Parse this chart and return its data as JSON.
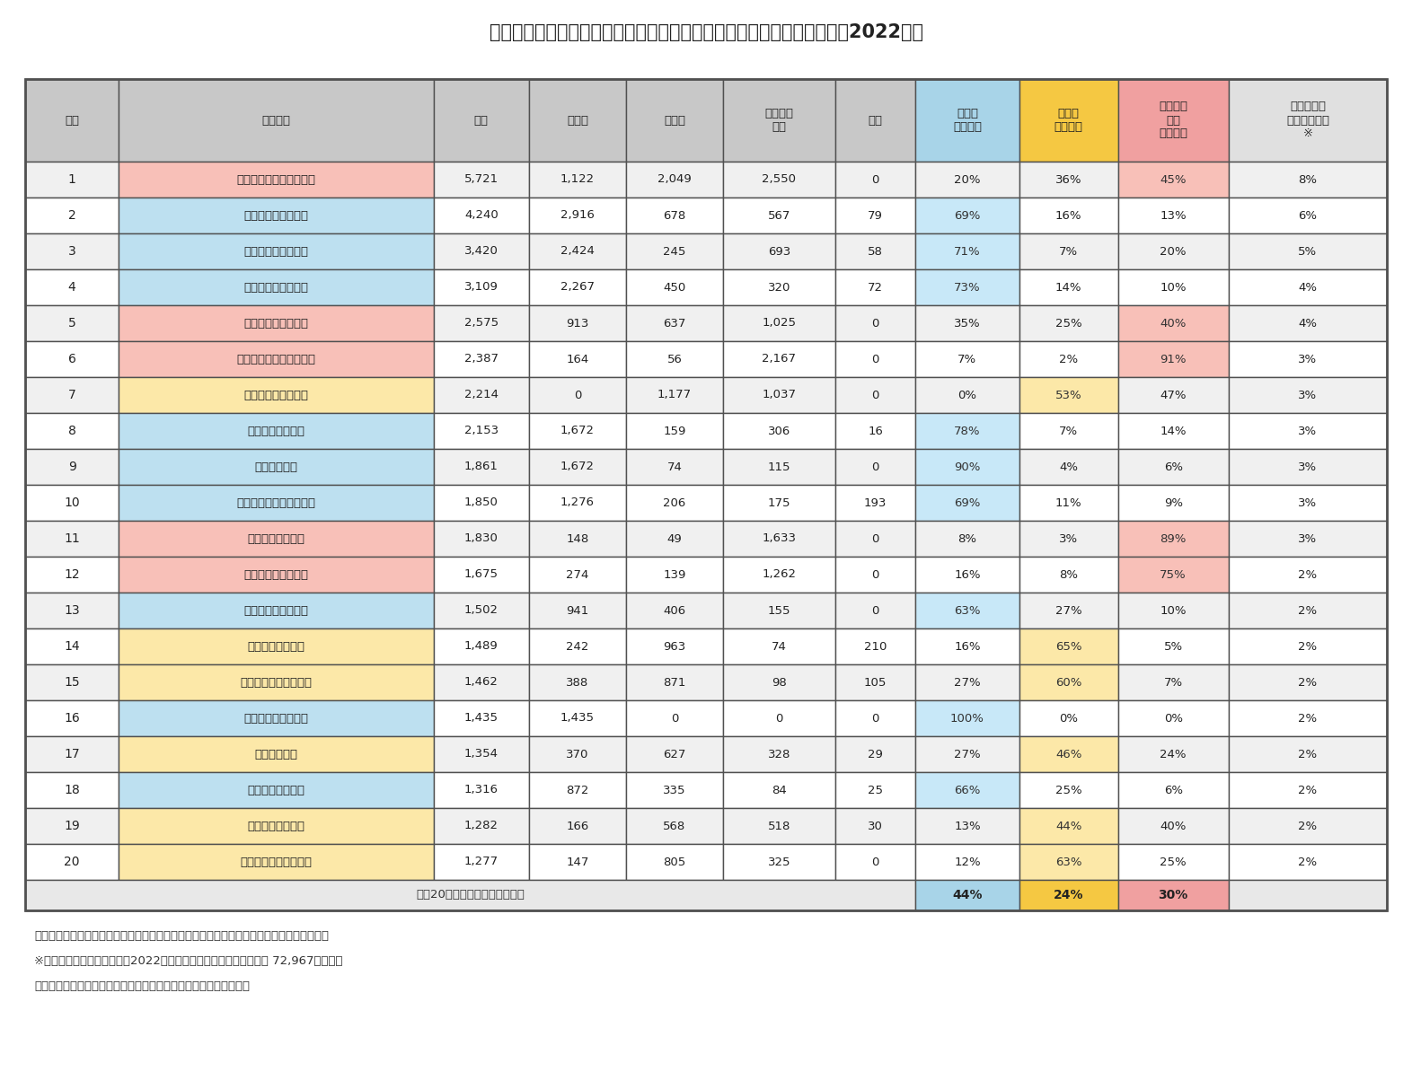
{
  "title": "図表８　新築マンションの供給戸数ランキングと各圏域での供給割合（2022年）",
  "rows": [
    [
      1,
      "オープンハウスグループ",
      "5,721",
      "1,122",
      "2,049",
      "2,550",
      "0",
      "20%",
      "36%",
      "45%",
      "8%"
    ],
    [
      2,
      "野村不動産グループ",
      "4,240",
      "2,916",
      "678",
      "567",
      "79",
      "69%",
      "16%",
      "13%",
      "6%"
    ],
    [
      3,
      "三井不動産グループ",
      "3,420",
      "2,424",
      "245",
      "693",
      "58",
      "71%",
      "7%",
      "20%",
      "5%"
    ],
    [
      4,
      "住友不動産グループ",
      "3,109",
      "2,267",
      "450",
      "320",
      "72",
      "73%",
      "14%",
      "10%",
      "4%"
    ],
    [
      5,
      "大和ハウスグループ",
      "2,575",
      "913",
      "637",
      "1,025",
      "0",
      "35%",
      "25%",
      "40%",
      "4%"
    ],
    [
      6,
      "タカラレーベングループ",
      "2,387",
      "164",
      "56",
      "2,167",
      "0",
      "7%",
      "2%",
      "91%",
      "3%"
    ],
    [
      7,
      "森トラストグループ",
      "2,214",
      "0",
      "1,177",
      "1,037",
      "0",
      "0%",
      "53%",
      "47%",
      "3%"
    ],
    [
      8,
      "三菱地所グループ",
      "2,153",
      "1,672",
      "159",
      "306",
      "16",
      "78%",
      "7%",
      "14%",
      "3%"
    ],
    [
      9,
      "飯田グループ",
      "1,861",
      "1,672",
      "74",
      "115",
      "0",
      "90%",
      "4%",
      "6%",
      "3%"
    ],
    [
      10,
      "日鉄興和不動産グループ",
      "1,850",
      "1,276",
      "206",
      "175",
      "193",
      "69%",
      "11%",
      "9%",
      "3%"
    ],
    [
      11,
      "あなぶきグループ",
      "1,830",
      "148",
      "49",
      "1,633",
      "0",
      "8%",
      "3%",
      "89%",
      "3%"
    ],
    [
      12,
      "オリックスグループ",
      "1,675",
      "274",
      "139",
      "1,262",
      "0",
      "16%",
      "8%",
      "75%",
      "2%"
    ],
    [
      13,
      "東急不動産グループ",
      "1,502",
      "941",
      "406",
      "155",
      "0",
      "63%",
      "27%",
      "10%",
      "2%"
    ],
    [
      14,
      "関西電力グループ",
      "1,489",
      "242",
      "963",
      "74",
      "210",
      "16%",
      "65%",
      "5%",
      "2%"
    ],
    [
      15,
      "阪急阪神東宝グループ",
      "1,462",
      "388",
      "871",
      "98",
      "105",
      "27%",
      "60%",
      "7%",
      "2%"
    ],
    [
      16,
      "新日本建設グループ",
      "1,435",
      "1,435",
      "0",
      "0",
      "0",
      "100%",
      "0%",
      "0%",
      "2%"
    ],
    [
      17,
      "近鉄グループ",
      "1,354",
      "370",
      "627",
      "328",
      "29",
      "27%",
      "46%",
      "24%",
      "2%"
    ],
    [
      18,
      "東京建物グループ",
      "1,316",
      "872",
      "335",
      "84",
      "25",
      "66%",
      "25%",
      "6%",
      "2%"
    ],
    [
      19,
      "中部電力グループ",
      "1,282",
      "166",
      "568",
      "518",
      "30",
      "13%",
      "44%",
      "40%",
      "2%"
    ],
    [
      20,
      "日商エステムグループ",
      "1,277",
      "147",
      "805",
      "325",
      "0",
      "12%",
      "63%",
      "25%",
      "2%"
    ]
  ],
  "footer_label": "上位20社の各圏域での供給割合",
  "footer_vals": [
    "44%",
    "24%",
    "30%"
  ],
  "footnotes": [
    "青：首都圏への供給が多い、黄：近畿圏への供給が多い、赤：その他の圏域への供給が多い",
    "※　ここでの全体の供給は、2022年の全国新築マンション供給戸数 72,967戸を指す",
    "（資料）不動産経済研究所の公表を基にニッセイ基礎研究所が作成"
  ],
  "col_headers": [
    "順位",
    "グループ",
    "全国",
    "首都圏",
    "近畿圏",
    "その他の\n圏域",
    "定借",
    "首都圏\n投資割合",
    "近畿圏\n投資割合",
    "その他の\n圏域\n投資割合",
    "全体の供給\nに占める割合\n※"
  ],
  "header_gray": "#c8c8c8",
  "header_blue": "#a8d4e8",
  "header_yellow": "#f5c842",
  "header_pink": "#f0a0a0",
  "header_lastcol": "#e0e0e0",
  "name_blue": "#bde0f0",
  "name_yellow": "#fce8a8",
  "name_pink": "#f8c0b8",
  "cell_blue": "#c8e8f8",
  "cell_yellow": "#fce8a8",
  "cell_pink": "#f8c0b8",
  "footer_blue": "#a8d4e8",
  "footer_yellow": "#f5c842",
  "footer_pink": "#f0a0a0",
  "row_odd": "#f0f0f0",
  "row_even": "#ffffff"
}
